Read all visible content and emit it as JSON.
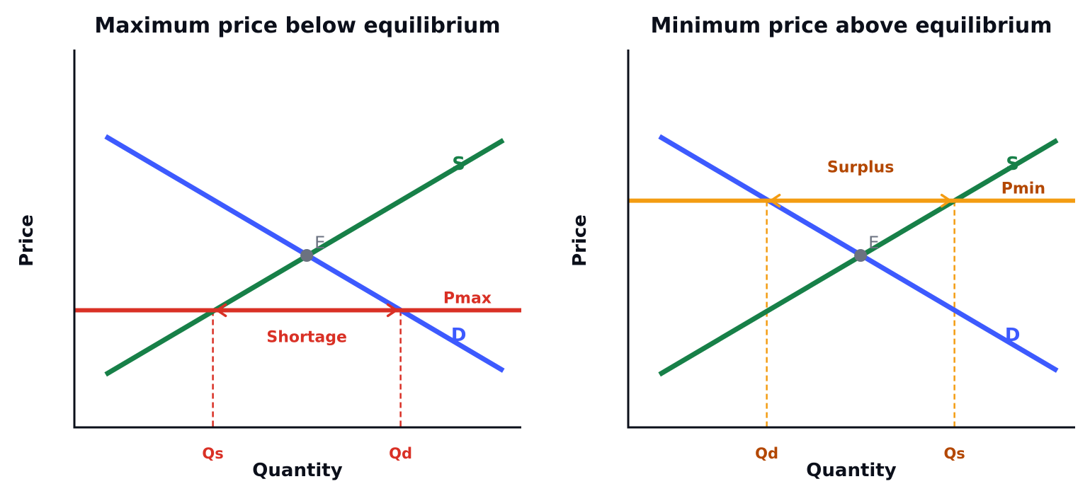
{
  "colors": {
    "supply": "#178048",
    "demand": "#3d5afe",
    "pmax": "#d93025",
    "pmin": "#f39c12",
    "pmin_text": "#b34700",
    "equilibrium": "#6b7280",
    "axis": "#0b0f1a"
  },
  "chart_data": [
    {
      "type": "line",
      "title": "Maximum price below equilibrium",
      "xlabel": "Quantity",
      "ylabel": "Price",
      "xlim": [
        0,
        10
      ],
      "ylim": [
        0,
        10
      ],
      "grid": false,
      "series": [
        {
          "name": "S",
          "kind": "supply",
          "x": [
            0.7,
            9.6
          ],
          "y": [
            1.4,
            7.6
          ]
        },
        {
          "name": "D",
          "kind": "demand",
          "x": [
            0.7,
            9.6
          ],
          "y": [
            7.7,
            1.5
          ]
        }
      ],
      "equilibrium": {
        "label": "E",
        "x": 5.2,
        "y": 4.55
      },
      "price_control": {
        "label": "Pmax",
        "kind": "pmax",
        "y": 3.1
      },
      "gap": {
        "label": "Shortage",
        "from_x": 7.3,
        "to_x": 3.1,
        "arrow_dirs": [
          "left",
          "right"
        ]
      },
      "drop_lines": [
        {
          "label": "Qs",
          "x": 3.1
        },
        {
          "label": "Qd",
          "x": 7.3
        }
      ]
    },
    {
      "type": "line",
      "title": "Minimum price above equilibrium",
      "xlabel": "Quantity",
      "ylabel": "Price",
      "xlim": [
        0,
        10
      ],
      "ylim": [
        0,
        10
      ],
      "grid": false,
      "series": [
        {
          "name": "S",
          "kind": "supply",
          "x": [
            0.7,
            9.6
          ],
          "y": [
            1.4,
            7.6
          ]
        },
        {
          "name": "D",
          "kind": "demand",
          "x": [
            0.7,
            9.6
          ],
          "y": [
            7.7,
            1.5
          ]
        }
      ],
      "equilibrium": {
        "label": "E",
        "x": 5.2,
        "y": 4.55
      },
      "price_control": {
        "label": "Pmin",
        "kind": "pmin",
        "y": 6.0
      },
      "gap": {
        "label": "Surplus",
        "from_x": 3.1,
        "to_x": 7.3
      },
      "drop_lines": [
        {
          "label": "Qd",
          "x": 3.1
        },
        {
          "label": "Qs",
          "x": 7.3
        }
      ]
    }
  ]
}
